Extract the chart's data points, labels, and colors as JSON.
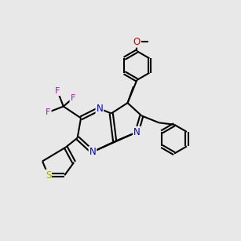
{
  "bg_color": "#e8e8e8",
  "bond_color": "#000000",
  "bond_width": 1.5,
  "N_color": "#0000cc",
  "O_color": "#cc0000",
  "F_color": "#cc00cc",
  "S_color": "#aaaa00",
  "font_size": 8.5
}
